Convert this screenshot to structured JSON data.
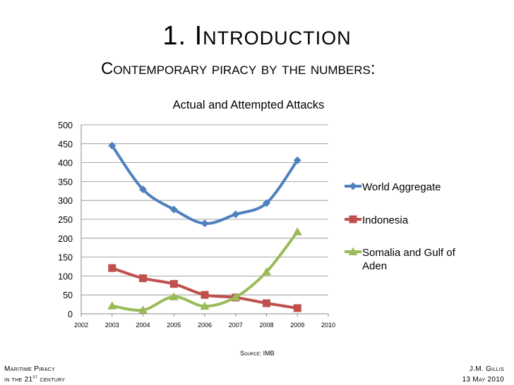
{
  "slide": {
    "title": "1. Introduction",
    "subtitle": "Contemporary piracy by the numbers:",
    "source": "Source: IMB",
    "footer_left": {
      "line1": "Maritime Piracy",
      "line2_pre": "in the 21",
      "line2_sup": "st",
      "line2_post": " century"
    },
    "footer_right": {
      "line1": "J.M. Gillis",
      "line2": "13 May 2010"
    }
  },
  "chart_data": {
    "type": "line",
    "title": "Actual and Attempted Attacks",
    "xlabel": "",
    "ylabel": "",
    "xlim": [
      2002,
      2010
    ],
    "ylim": [
      0,
      500
    ],
    "x_ticks": [
      "2002",
      "2003",
      "2004",
      "2005",
      "2006",
      "2007",
      "2008",
      "2009",
      "2010"
    ],
    "y_ticks": [
      "0",
      "50",
      "100",
      "150",
      "200",
      "250",
      "300",
      "350",
      "400",
      "450",
      "500"
    ],
    "grid": true,
    "legend_position": "right",
    "x": [
      2003,
      2004,
      2005,
      2006,
      2007,
      2008,
      2009
    ],
    "series": [
      {
        "name": "World Aggregate",
        "values": [
          445,
          329,
          276,
          239,
          263,
          293,
          406
        ],
        "color": "#4F81BD",
        "marker": "diamond"
      },
      {
        "name": "Indonesia",
        "values": [
          121,
          94,
          79,
          50,
          43,
          28,
          15
        ],
        "color": "#C0504D",
        "marker": "square"
      },
      {
        "name": "Somalia and Gulf of Aden",
        "values": [
          21,
          10,
          45,
          20,
          44,
          111,
          217
        ],
        "color": "#9BBB59",
        "marker": "triangle"
      }
    ]
  }
}
